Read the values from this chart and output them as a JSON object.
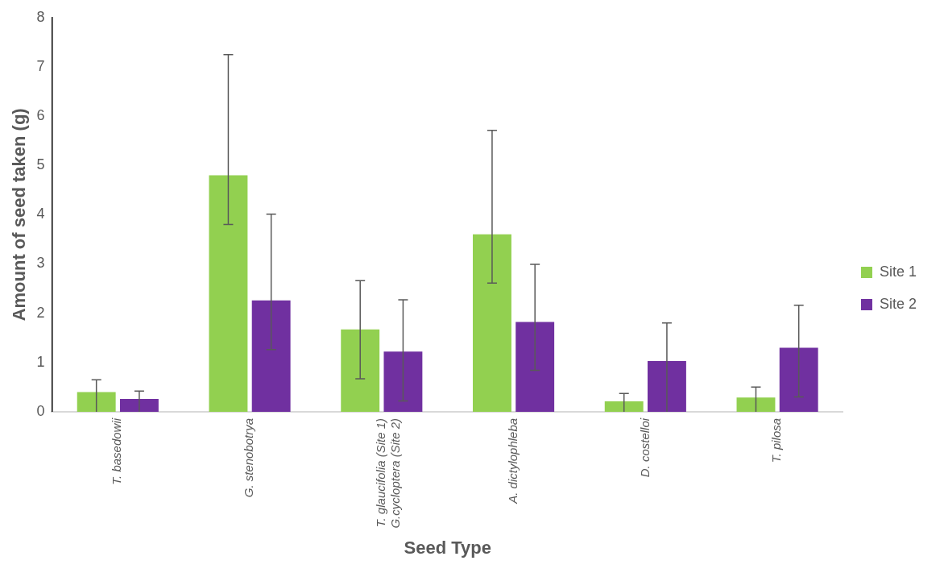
{
  "chart_data": {
    "type": "bar",
    "xlabel": "Seed Type",
    "ylabel": "Amount of seed taken (g)",
    "categories": [
      "T. basedowii",
      "G. stenobotrya",
      "T. glaucifolia (Site 1)\nG.cycloptera (Site 2)",
      "A. dictylophleba",
      "D. costelloi",
      "T. pilosa"
    ],
    "series": [
      {
        "name": "Site 1",
        "color": "#92d050",
        "values": [
          0.4,
          4.8,
          1.67,
          3.6,
          0.21,
          0.29
        ],
        "errors": [
          [
            0,
            0.65
          ],
          [
            3.8,
            7.25
          ],
          [
            0.67,
            2.66
          ],
          [
            2.61,
            5.71
          ],
          [
            0,
            0.37
          ],
          [
            0,
            0.5
          ]
        ]
      },
      {
        "name": "Site 2",
        "color": "#7030a0",
        "values": [
          0.26,
          2.26,
          1.22,
          1.82,
          1.03,
          1.3
        ],
        "errors": [
          [
            0,
            0.42
          ],
          [
            1.26,
            4.01
          ],
          [
            0.22,
            2.27
          ],
          [
            0.84,
            2.99
          ],
          [
            0,
            1.8
          ],
          [
            0.3,
            2.16
          ]
        ]
      }
    ],
    "ylim": [
      0,
      8
    ],
    "yticks": [
      0,
      1,
      2,
      3,
      4,
      5,
      6,
      7,
      8
    ],
    "grid": false,
    "legend": "right"
  }
}
